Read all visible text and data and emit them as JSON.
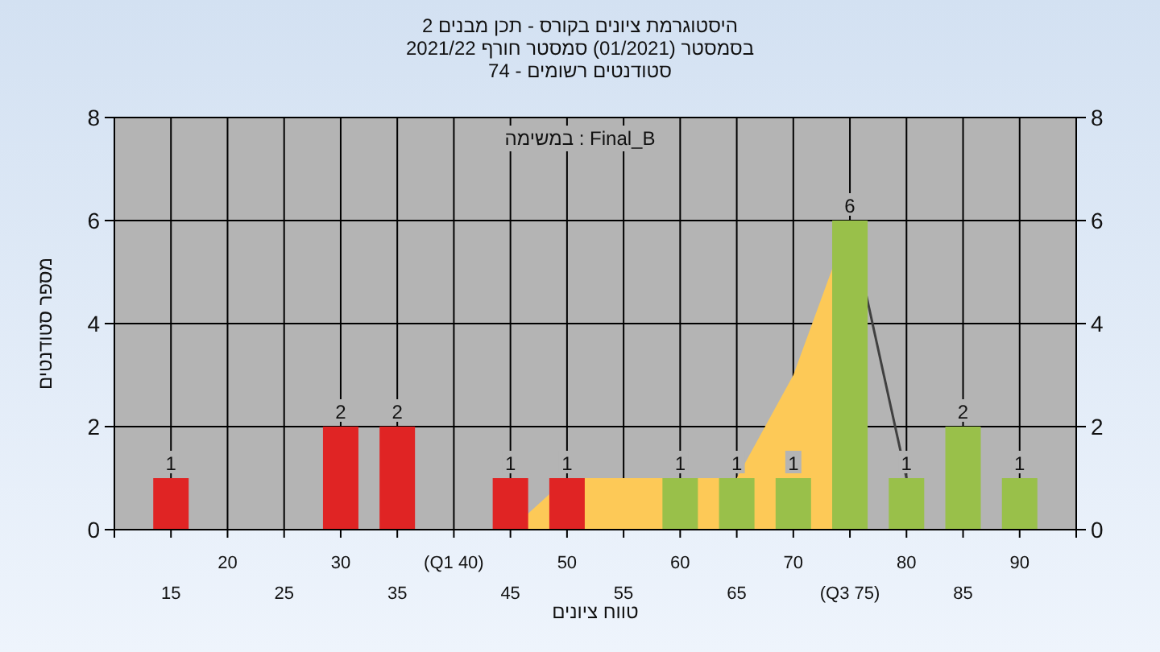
{
  "chart_data": {
    "type": "bar",
    "title": "היסטוגרמת ציונים בקורס - תכן מבנים 2",
    "subtitle": "בסמסטר  (01/2021)  סמסטר חורף 2021/22\nסטודנטים רשומים - 74",
    "xlabel": "טווח ציונים",
    "ylabel": "מספר סטודנטים",
    "annotations": [
      "במשימה : Final_B"
    ],
    "categories": [
      "15",
      "20",
      "25",
      "30",
      "35",
      "(Q1 40)",
      "45",
      "50",
      "55",
      "60",
      "65",
      "70",
      "(Q3 75)",
      "80",
      "85",
      "90"
    ],
    "series": [
      {
        "type": "area",
        "color": "#fdc957",
        "values": [
          null,
          null,
          null,
          null,
          null,
          null,
          0,
          1,
          1,
          1,
          1,
          3,
          6,
          null,
          null,
          null
        ]
      },
      {
        "type": "line",
        "color": "#404040",
        "values": [
          null,
          null,
          null,
          null,
          null,
          null,
          null,
          null,
          null,
          null,
          null,
          null,
          6,
          1,
          null,
          null
        ]
      },
      {
        "values": [
          1,
          0,
          0,
          2,
          2,
          0,
          1,
          1,
          0,
          1,
          1,
          1,
          6,
          1,
          2,
          1
        ],
        "colors": [
          "#e02424",
          "#e02424",
          "#e02424",
          "#e02424",
          "#e02424",
          "#e02424",
          "#e02424",
          "#e02424",
          "#99c04a",
          "#99c04a",
          "#99c04a",
          "#99c04a",
          "#99c04a",
          "#99c04a",
          "#99c04a",
          "#99c04a"
        ],
        "value_labels": [
          "1",
          null,
          null,
          "2",
          "2",
          null,
          "1",
          "1",
          null,
          "1",
          "1",
          "1",
          "6",
          "1",
          "2",
          "1"
        ]
      }
    ],
    "ylim": [
      0,
      8
    ],
    "yticks": [
      0,
      2,
      4,
      6,
      8
    ],
    "y2lim": [
      0,
      8
    ],
    "y2ticks": [
      0,
      2,
      4,
      6,
      8
    ],
    "grid": true
  }
}
